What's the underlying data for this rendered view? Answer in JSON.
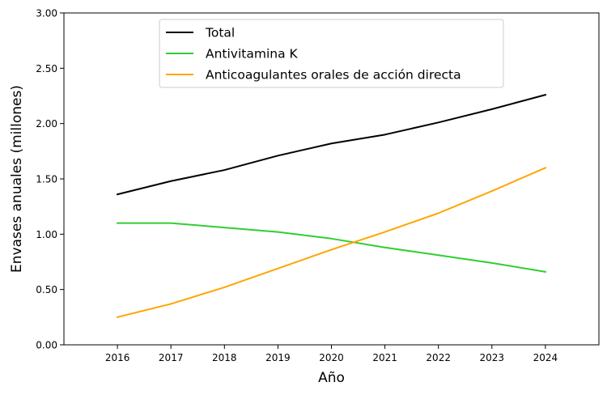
{
  "chart_data": {
    "type": "line",
    "title": "",
    "xlabel": "Año",
    "ylabel": "Envases anuales (millones)",
    "x": [
      2016,
      2017,
      2018,
      2019,
      2020,
      2021,
      2022,
      2023,
      2024
    ],
    "xlim": [
      2015,
      2025
    ],
    "ylim": [
      0,
      3
    ],
    "yticks": [
      "0.00",
      "0.50",
      "1.00",
      "1.50",
      "2.00",
      "2.50",
      "3.00"
    ],
    "grid": false,
    "legend_position": "top-center",
    "series": [
      {
        "name": "Total",
        "color": "#000000",
        "values": [
          1.36,
          1.48,
          1.58,
          1.71,
          1.82,
          1.9,
          2.01,
          2.13,
          2.26
        ]
      },
      {
        "name": "Antivitamina K",
        "color": "#32cd32",
        "values": [
          1.1,
          1.1,
          1.06,
          1.02,
          0.96,
          0.88,
          0.81,
          0.74,
          0.66
        ]
      },
      {
        "name": "Anticoagulantes orales de acción directa",
        "color": "#ffa500",
        "values": [
          0.25,
          0.37,
          0.52,
          0.69,
          0.86,
          1.02,
          1.19,
          1.39,
          1.6
        ]
      }
    ]
  }
}
